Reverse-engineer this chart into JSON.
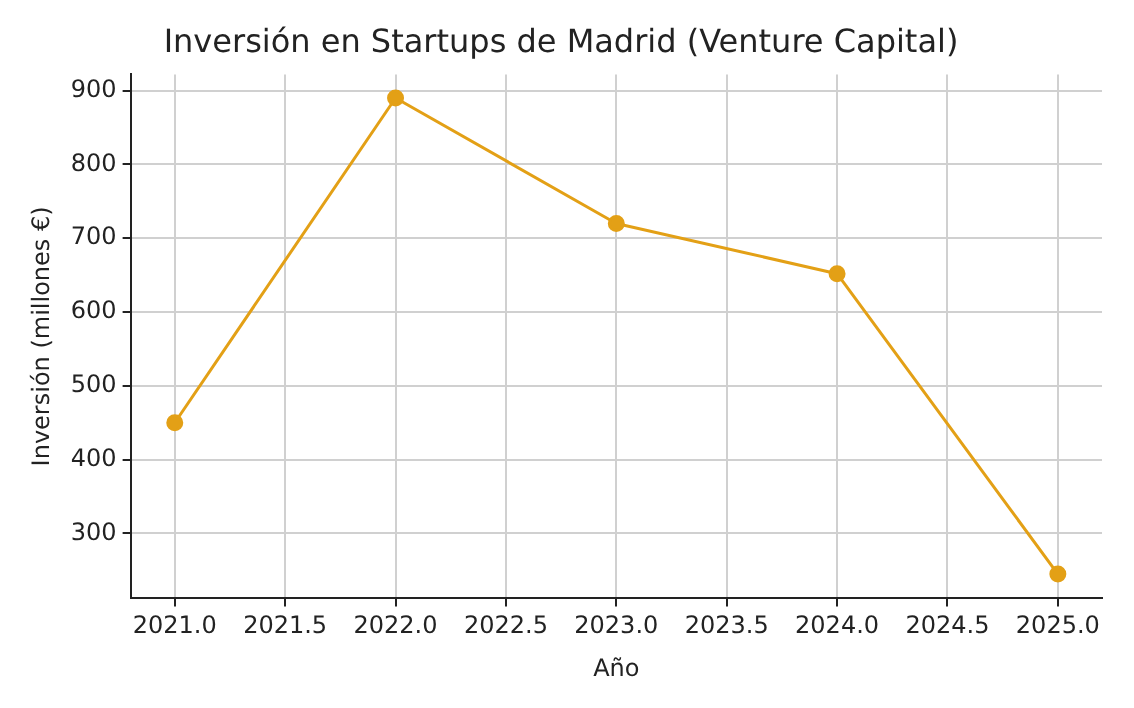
{
  "chart_data": {
    "type": "line",
    "title": "Inversión en Startups de Madrid (Venture Capital)",
    "xlabel": "Año",
    "ylabel": "Inversión (millones €)",
    "x": [
      2021,
      2022,
      2023,
      2024,
      2025
    ],
    "series": [
      {
        "color": "#e3a016",
        "values": [
          450,
          890,
          720,
          652,
          245
        ]
      }
    ],
    "xlim": [
      2020.8,
      2025.2
    ],
    "xticks": [
      {
        "value": 2021,
        "label": "2021.0"
      },
      {
        "value": 2021.5,
        "label": "2021.5"
      },
      {
        "value": 2022,
        "label": "2022.0"
      },
      {
        "value": 2022.5,
        "label": "2022.5"
      },
      {
        "value": 2023,
        "label": "2023.0"
      },
      {
        "value": 2023.5,
        "label": "2023.5"
      },
      {
        "value": 2024,
        "label": "2024.0"
      },
      {
        "value": 2024.5,
        "label": "2024.5"
      },
      {
        "value": 2025,
        "label": "2025.0"
      }
    ],
    "ylim": [
      212,
      922
    ],
    "yticks": [
      300,
      400,
      500,
      600,
      700,
      800,
      900
    ],
    "grid": true,
    "legend": false,
    "marker": "circle",
    "line_style": "solid"
  }
}
